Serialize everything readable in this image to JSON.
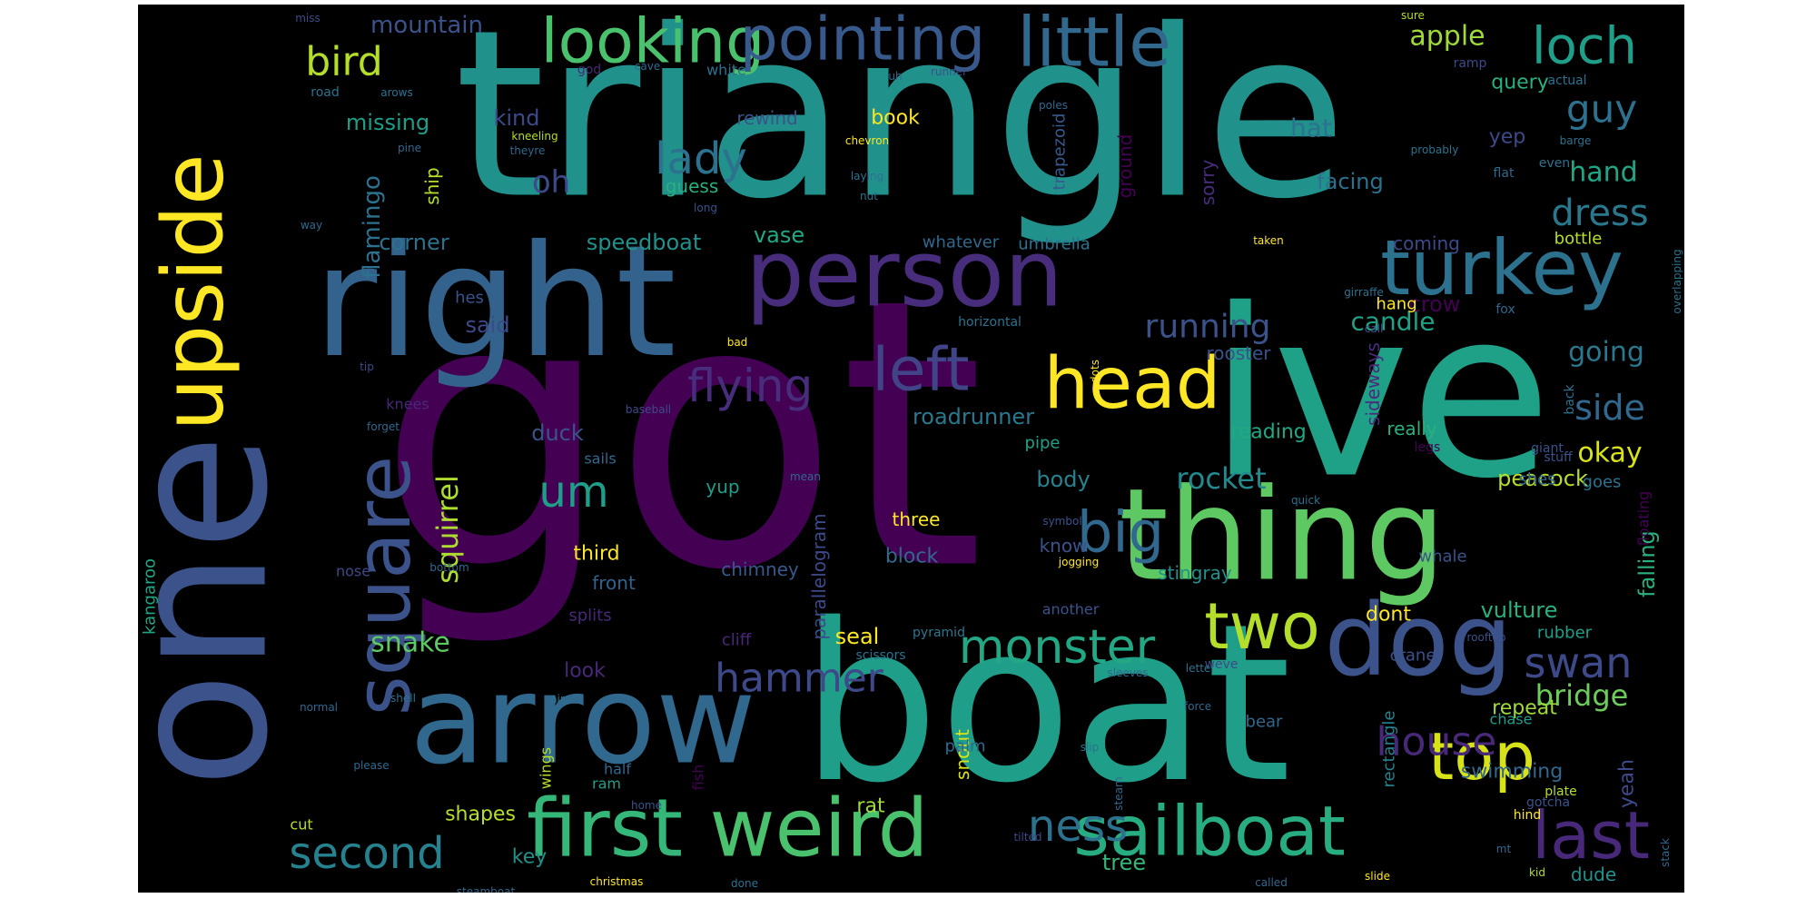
{
  "words": [
    {
      "text": "got",
      "color": "#440154"
    },
    {
      "text": "triangle",
      "color": "#21918c"
    },
    {
      "text": "ive",
      "color": "#1fa187"
    },
    {
      "text": "boat",
      "color": "#1f9e89"
    },
    {
      "text": "one",
      "color": "#3b528b"
    },
    {
      "text": "right",
      "color": "#33638d"
    },
    {
      "text": "thing",
      "color": "#5ec962"
    },
    {
      "text": "arrow",
      "color": "#31688e"
    },
    {
      "text": "person",
      "color": "#472d7b"
    },
    {
      "text": "upside",
      "color": "#fde725"
    },
    {
      "text": "dog",
      "color": "#3b528b"
    },
    {
      "text": "turkey",
      "color": "#2c728e"
    },
    {
      "text": "square",
      "color": "#3b528b"
    },
    {
      "text": "first",
      "color": "#35b779"
    },
    {
      "text": "weird",
      "color": "#4ac16d"
    },
    {
      "text": "sailboat",
      "color": "#27ad81"
    },
    {
      "text": "little",
      "color": "#31688e"
    },
    {
      "text": "looking",
      "color": "#4ac16d"
    },
    {
      "text": "pointing",
      "color": "#38598c"
    },
    {
      "text": "head",
      "color": "#fde725"
    },
    {
      "text": "left",
      "color": "#414487"
    },
    {
      "text": "big",
      "color": "#31688e"
    },
    {
      "text": "two",
      "color": "#b5de2b"
    },
    {
      "text": "top",
      "color": "#d8e219"
    },
    {
      "text": "last",
      "color": "#482878"
    },
    {
      "text": "monster",
      "color": "#22a884"
    },
    {
      "text": "flying",
      "color": "#472d7b"
    },
    {
      "text": "loch",
      "color": "#1f9e89"
    },
    {
      "text": "lady",
      "color": "#2c728e"
    },
    {
      "text": "second",
      "color": "#26828e"
    },
    {
      "text": "hammer",
      "color": "#3e4989"
    },
    {
      "text": "ness",
      "color": "#2c728e"
    },
    {
      "text": "house",
      "color": "#482878"
    },
    {
      "text": "swan",
      "color": "#3e4989"
    },
    {
      "text": "bird",
      "color": "#b5de2b"
    },
    {
      "text": "guy",
      "color": "#2c728e"
    },
    {
      "text": "dress",
      "color": "#2a788e"
    },
    {
      "text": "side",
      "color": "#31688e"
    },
    {
      "text": "um",
      "color": "#1f9e89"
    },
    {
      "text": "oh",
      "color": "#3e4989"
    },
    {
      "text": "running",
      "color": "#3b528b"
    },
    {
      "text": "rocket",
      "color": "#23898e"
    },
    {
      "text": "bridge",
      "color": "#6ccd5a"
    },
    {
      "text": "okay",
      "color": "#d8e219"
    },
    {
      "text": "squirrel",
      "color": "#addc30"
    },
    {
      "text": "flamingo",
      "color": "#2c728e"
    },
    {
      "text": "apple",
      "color": "#a0da39"
    },
    {
      "text": "hand",
      "color": "#21a685"
    },
    {
      "text": "snake",
      "color": "#5ec962"
    },
    {
      "text": "mountain",
      "color": "#3b528b"
    },
    {
      "text": "going",
      "color": "#2a788e"
    },
    {
      "text": "hat",
      "color": "#2c728e"
    },
    {
      "text": "candle",
      "color": "#1fa187"
    },
    {
      "text": "crow",
      "color": "#440154"
    },
    {
      "text": "kind",
      "color": "#3e4989"
    },
    {
      "text": "missing",
      "color": "#1f9e89"
    },
    {
      "text": "corner",
      "color": "#2c728e"
    },
    {
      "text": "speedboat",
      "color": "#21918c"
    },
    {
      "text": "said",
      "color": "#3e4989"
    },
    {
      "text": "duck",
      "color": "#3b528b"
    },
    {
      "text": "roadrunner",
      "color": "#2a788e"
    },
    {
      "text": "body",
      "color": "#26828e"
    },
    {
      "text": "vulture",
      "color": "#2ab07f"
    },
    {
      "text": "falling",
      "color": "#2ab07f"
    },
    {
      "text": "peacock",
      "color": "#b5de2b"
    },
    {
      "text": "seal",
      "color": "#fde725"
    },
    {
      "text": "tree",
      "color": "#35b779"
    },
    {
      "text": "key",
      "color": "#21918c"
    },
    {
      "text": "shapes",
      "color": "#b5de2b"
    },
    {
      "text": "rat",
      "color": "#a0da39"
    },
    {
      "text": "repeat",
      "color": "#a0da39"
    },
    {
      "text": "yeah",
      "color": "#3e4989"
    },
    {
      "text": "swimming",
      "color": "#31688e"
    },
    {
      "text": "dude",
      "color": "#21918c"
    },
    {
      "text": "vase",
      "color": "#22a884"
    },
    {
      "text": "book",
      "color": "#fde725"
    },
    {
      "text": "guess",
      "color": "#2ab07f"
    },
    {
      "text": "query",
      "color": "#2ab07f"
    },
    {
      "text": "yep",
      "color": "#3e4989"
    },
    {
      "text": "facing",
      "color": "#2c728e"
    },
    {
      "text": "rewind",
      "color": "#3b528b"
    },
    {
      "text": "ship",
      "color": "#b5de2b"
    },
    {
      "text": "really",
      "color": "#2ab07f"
    },
    {
      "text": "reading",
      "color": "#22a884"
    },
    {
      "text": "three",
      "color": "#fde725"
    },
    {
      "text": "third",
      "color": "#fde725"
    },
    {
      "text": "block",
      "color": "#31688e"
    },
    {
      "text": "front",
      "color": "#33638d"
    },
    {
      "text": "know",
      "color": "#3b528b"
    },
    {
      "text": "look",
      "color": "#482878"
    },
    {
      "text": "snout",
      "color": "#d8e219"
    },
    {
      "text": "dont",
      "color": "#fde725"
    },
    {
      "text": "stingray",
      "color": "#21918c"
    },
    {
      "text": "chimney",
      "color": "#38598c"
    },
    {
      "text": "yup",
      "color": "#1f9e89"
    },
    {
      "text": "rooster",
      "color": "#3b528b"
    },
    {
      "text": "coming",
      "color": "#3e4989"
    },
    {
      "text": "sideways",
      "color": "#472d7b"
    },
    {
      "text": "goes",
      "color": "#2c728e"
    },
    {
      "text": "shes",
      "color": "#31688e"
    },
    {
      "text": "parallelogram",
      "color": "#3e4989"
    },
    {
      "text": "sorry",
      "color": "#472d7b"
    },
    {
      "text": "ground",
      "color": "#440154"
    },
    {
      "text": "trapezoid",
      "color": "#38598c"
    },
    {
      "text": "kangaroo",
      "color": "#21a685"
    },
    {
      "text": "pipe",
      "color": "#1fa187"
    },
    {
      "text": "cliff",
      "color": "#482878"
    },
    {
      "text": "splits",
      "color": "#482878"
    },
    {
      "text": "umbrella",
      "color": "#2c728e"
    },
    {
      "text": "whatever",
      "color": "#31688e"
    },
    {
      "text": "whale",
      "color": "#3b528b"
    },
    {
      "text": "hang",
      "color": "#fde725"
    },
    {
      "text": "bottle",
      "color": "#b5de2b"
    },
    {
      "text": "crane",
      "color": "#3b528b"
    },
    {
      "text": "rectangle",
      "color": "#26828e"
    },
    {
      "text": "palm",
      "color": "#31688e"
    },
    {
      "text": "bear",
      "color": "#31688e"
    },
    {
      "text": "rubber",
      "color": "#1f9e89"
    },
    {
      "text": "chase",
      "color": "#1f9e89"
    },
    {
      "text": "wings",
      "color": "#b5de2b"
    },
    {
      "text": "fish",
      "color": "#440154"
    },
    {
      "text": "floating",
      "color": "#440154"
    },
    {
      "text": "hes",
      "color": "#3b528b"
    },
    {
      "text": "nose",
      "color": "#3e4989"
    },
    {
      "text": "knees",
      "color": "#482878"
    },
    {
      "text": "white",
      "color": "#2c728e"
    },
    {
      "text": "ram",
      "color": "#1f9e89"
    },
    {
      "text": "cut",
      "color": "#b5de2b"
    },
    {
      "text": "half",
      "color": "#31688e"
    },
    {
      "text": "another",
      "color": "#3b528b"
    },
    {
      "text": "pyramid",
      "color": "#2a788e"
    },
    {
      "text": "scissors",
      "color": "#2c728e"
    },
    {
      "text": "plate",
      "color": "#b5de2b"
    },
    {
      "text": "gotcha",
      "color": "#3b528b"
    },
    {
      "text": "hind",
      "color": "#fde725"
    },
    {
      "text": "flat",
      "color": "#31688e"
    },
    {
      "text": "even",
      "color": "#2c728e"
    },
    {
      "text": "weve",
      "color": "#3e4989"
    },
    {
      "text": "sails",
      "color": "#31688e"
    },
    {
      "text": "horizontal",
      "color": "#2c728e"
    },
    {
      "text": "fox",
      "color": "#31688e"
    },
    {
      "text": "stuff",
      "color": "#3b528b"
    },
    {
      "text": "legs",
      "color": "#440154"
    },
    {
      "text": "giant",
      "color": "#3b528b"
    },
    {
      "text": "back",
      "color": "#2c728e"
    },
    {
      "text": "actual",
      "color": "#2c728e"
    },
    {
      "text": "ramp",
      "color": "#3e4989"
    },
    {
      "text": "sure",
      "color": "#b5de2b"
    },
    {
      "text": "barge",
      "color": "#2c728e"
    },
    {
      "text": "probably",
      "color": "#2c728e"
    },
    {
      "text": "taken",
      "color": "#fde725"
    },
    {
      "text": "girraffe",
      "color": "#2c728e"
    },
    {
      "text": "call",
      "color": "#3b528b"
    },
    {
      "text": "overlapping",
      "color": "#2c728e"
    },
    {
      "text": "runner",
      "color": "#3b528b"
    },
    {
      "text": "uh",
      "color": "#31688e"
    },
    {
      "text": "poles",
      "color": "#31688e"
    },
    {
      "text": "cave",
      "color": "#31688e"
    },
    {
      "text": "god",
      "color": "#482878"
    },
    {
      "text": "miss",
      "color": "#3e4989"
    },
    {
      "text": "road",
      "color": "#2c728e"
    },
    {
      "text": "arows",
      "color": "#2c728e"
    },
    {
      "text": "pine",
      "color": "#31688e"
    },
    {
      "text": "kneeling",
      "color": "#b5de2b"
    },
    {
      "text": "theyre",
      "color": "#31688e"
    },
    {
      "text": "chevron",
      "color": "#fde725"
    },
    {
      "text": "laying",
      "color": "#2c728e"
    },
    {
      "text": "nut",
      "color": "#2c728e"
    },
    {
      "text": "long",
      "color": "#3b528b"
    },
    {
      "text": "way",
      "color": "#31688e"
    },
    {
      "text": "tip",
      "color": "#3e4989"
    },
    {
      "text": "bad",
      "color": "#fde725"
    },
    {
      "text": "dots",
      "color": "#fde725"
    },
    {
      "text": "forget",
      "color": "#31688e"
    },
    {
      "text": "baseball",
      "color": "#3e4989"
    },
    {
      "text": "mean",
      "color": "#31688e"
    },
    {
      "text": "quick",
      "color": "#2c728e"
    },
    {
      "text": "symbol",
      "color": "#3b528b"
    },
    {
      "text": "jogging",
      "color": "#fde725"
    },
    {
      "text": "bottom",
      "color": "#31688e"
    },
    {
      "text": "rooftop",
      "color": "#3b528b"
    },
    {
      "text": "letter",
      "color": "#2c728e"
    },
    {
      "text": "sleeves",
      "color": "#31688e"
    },
    {
      "text": "force",
      "color": "#31688e"
    },
    {
      "text": "air",
      "color": "#2c728e"
    },
    {
      "text": "normal",
      "color": "#31688e"
    },
    {
      "text": "shell",
      "color": "#2c728e"
    },
    {
      "text": "please",
      "color": "#31688e"
    },
    {
      "text": "home",
      "color": "#3b528b"
    },
    {
      "text": "slip",
      "color": "#2c728e"
    },
    {
      "text": "steam",
      "color": "#31688e"
    },
    {
      "text": "tilted",
      "color": "#3e4989"
    },
    {
      "text": "steamboat",
      "color": "#31688e"
    },
    {
      "text": "christmas",
      "color": "#fde725"
    },
    {
      "text": "done",
      "color": "#2c728e"
    },
    {
      "text": "called",
      "color": "#31688e"
    },
    {
      "text": "slide",
      "color": "#fde725"
    },
    {
      "text": "kid",
      "color": "#b5de2b"
    },
    {
      "text": "mt",
      "color": "#31688e"
    },
    {
      "text": "stack",
      "color": "#31688e"
    }
  ]
}
